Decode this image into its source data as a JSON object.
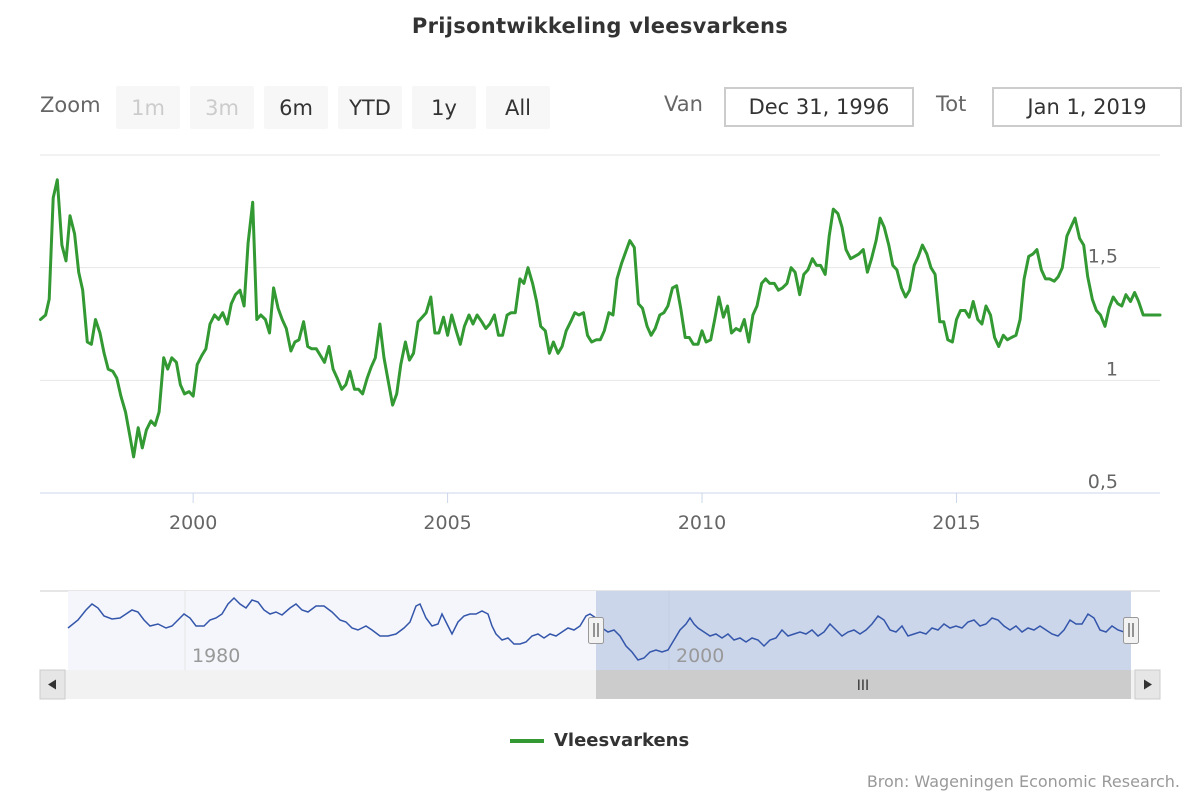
{
  "chart_data": {
    "type": "line",
    "title": "Prijsontwikkeling vleesvarkens",
    "xlabel": "",
    "ylabel": "",
    "xlim": [
      1996.99,
      2019.0
    ],
    "ylim": [
      0.5,
      2.0
    ],
    "y_ticks": [
      0.5,
      1,
      1.5
    ],
    "y_tick_labels": [
      "0,5",
      "1",
      "1,5"
    ],
    "x_ticks": [
      2000,
      2005,
      2010,
      2015
    ],
    "x_tick_labels": [
      "2000",
      "2005",
      "2010",
      "2015"
    ],
    "grid": true,
    "series": [
      {
        "name": "Vleesvarkens",
        "color": "#339933",
        "points": [
          [
            1997.0,
            1.27
          ],
          [
            1997.1,
            1.29
          ],
          [
            1997.17,
            1.36
          ],
          [
            1997.25,
            1.81
          ],
          [
            1997.33,
            1.89
          ],
          [
            1997.42,
            1.6
          ],
          [
            1997.5,
            1.53
          ],
          [
            1997.58,
            1.73
          ],
          [
            1997.67,
            1.65
          ],
          [
            1997.75,
            1.48
          ],
          [
            1997.83,
            1.4
          ],
          [
            1997.92,
            1.17
          ],
          [
            1998.0,
            1.16
          ],
          [
            1998.08,
            1.27
          ],
          [
            1998.17,
            1.21
          ],
          [
            1998.25,
            1.12
          ],
          [
            1998.33,
            1.05
          ],
          [
            1998.42,
            1.04
          ],
          [
            1998.5,
            1.01
          ],
          [
            1998.58,
            0.93
          ],
          [
            1998.67,
            0.86
          ],
          [
            1998.75,
            0.76
          ],
          [
            1998.83,
            0.66
          ],
          [
            1998.92,
            0.79
          ],
          [
            1999.0,
            0.7
          ],
          [
            1999.08,
            0.78
          ],
          [
            1999.17,
            0.82
          ],
          [
            1999.25,
            0.8
          ],
          [
            1999.33,
            0.86
          ],
          [
            1999.42,
            1.1
          ],
          [
            1999.5,
            1.05
          ],
          [
            1999.58,
            1.1
          ],
          [
            1999.67,
            1.08
          ],
          [
            1999.75,
            0.98
          ],
          [
            1999.83,
            0.94
          ],
          [
            1999.92,
            0.95
          ],
          [
            2000.0,
            0.93
          ],
          [
            2000.08,
            1.07
          ],
          [
            2000.17,
            1.11
          ],
          [
            2000.25,
            1.14
          ],
          [
            2000.33,
            1.25
          ],
          [
            2000.42,
            1.29
          ],
          [
            2000.5,
            1.27
          ],
          [
            2000.58,
            1.3
          ],
          [
            2000.67,
            1.25
          ],
          [
            2000.75,
            1.34
          ],
          [
            2000.83,
            1.38
          ],
          [
            2000.92,
            1.4
          ],
          [
            2001.0,
            1.33
          ],
          [
            2001.08,
            1.61
          ],
          [
            2001.17,
            1.79
          ],
          [
            2001.25,
            1.27
          ],
          [
            2001.33,
            1.29
          ],
          [
            2001.42,
            1.27
          ],
          [
            2001.5,
            1.21
          ],
          [
            2001.58,
            1.41
          ],
          [
            2001.67,
            1.32
          ],
          [
            2001.75,
            1.27
          ],
          [
            2001.83,
            1.23
          ],
          [
            2001.92,
            1.13
          ],
          [
            2002.0,
            1.17
          ],
          [
            2002.08,
            1.18
          ],
          [
            2002.17,
            1.26
          ],
          [
            2002.25,
            1.15
          ],
          [
            2002.33,
            1.14
          ],
          [
            2002.42,
            1.14
          ],
          [
            2002.5,
            1.11
          ],
          [
            2002.58,
            1.08
          ],
          [
            2002.67,
            1.15
          ],
          [
            2002.75,
            1.05
          ],
          [
            2002.83,
            1.01
          ],
          [
            2002.92,
            0.96
          ],
          [
            2003.0,
            0.98
          ],
          [
            2003.08,
            1.04
          ],
          [
            2003.17,
            0.96
          ],
          [
            2003.25,
            0.96
          ],
          [
            2003.33,
            0.94
          ],
          [
            2003.42,
            1.01
          ],
          [
            2003.5,
            1.06
          ],
          [
            2003.58,
            1.1
          ],
          [
            2003.67,
            1.25
          ],
          [
            2003.75,
            1.1
          ],
          [
            2003.83,
            1.0
          ],
          [
            2003.92,
            0.89
          ],
          [
            2004.0,
            0.94
          ],
          [
            2004.08,
            1.07
          ],
          [
            2004.17,
            1.17
          ],
          [
            2004.25,
            1.09
          ],
          [
            2004.33,
            1.12
          ],
          [
            2004.42,
            1.26
          ],
          [
            2004.5,
            1.28
          ],
          [
            2004.58,
            1.3
          ],
          [
            2004.67,
            1.37
          ],
          [
            2004.75,
            1.21
          ],
          [
            2004.83,
            1.21
          ],
          [
            2004.92,
            1.28
          ],
          [
            2005.0,
            1.2
          ],
          [
            2005.08,
            1.29
          ],
          [
            2005.17,
            1.22
          ],
          [
            2005.25,
            1.16
          ],
          [
            2005.33,
            1.24
          ],
          [
            2005.42,
            1.29
          ],
          [
            2005.5,
            1.25
          ],
          [
            2005.58,
            1.29
          ],
          [
            2005.67,
            1.26
          ],
          [
            2005.75,
            1.23
          ],
          [
            2005.83,
            1.25
          ],
          [
            2005.92,
            1.29
          ],
          [
            2006.0,
            1.2
          ],
          [
            2006.08,
            1.2
          ],
          [
            2006.17,
            1.29
          ],
          [
            2006.25,
            1.3
          ],
          [
            2006.33,
            1.3
          ],
          [
            2006.42,
            1.45
          ],
          [
            2006.5,
            1.43
          ],
          [
            2006.58,
            1.5
          ],
          [
            2006.67,
            1.43
          ],
          [
            2006.75,
            1.35
          ],
          [
            2006.83,
            1.24
          ],
          [
            2006.92,
            1.22
          ],
          [
            2007.0,
            1.12
          ],
          [
            2007.08,
            1.17
          ],
          [
            2007.17,
            1.12
          ],
          [
            2007.25,
            1.15
          ],
          [
            2007.33,
            1.22
          ],
          [
            2007.42,
            1.26
          ],
          [
            2007.5,
            1.3
          ],
          [
            2007.58,
            1.29
          ],
          [
            2007.67,
            1.3
          ],
          [
            2007.75,
            1.2
          ],
          [
            2007.83,
            1.17
          ],
          [
            2007.92,
            1.18
          ],
          [
            2008.0,
            1.18
          ],
          [
            2008.08,
            1.22
          ],
          [
            2008.17,
            1.3
          ],
          [
            2008.25,
            1.29
          ],
          [
            2008.33,
            1.45
          ],
          [
            2008.42,
            1.52
          ],
          [
            2008.5,
            1.57
          ],
          [
            2008.58,
            1.62
          ],
          [
            2008.67,
            1.59
          ],
          [
            2008.75,
            1.34
          ],
          [
            2008.83,
            1.32
          ],
          [
            2008.92,
            1.24
          ],
          [
            2009.0,
            1.2
          ],
          [
            2009.08,
            1.23
          ],
          [
            2009.17,
            1.29
          ],
          [
            2009.25,
            1.3
          ],
          [
            2009.33,
            1.33
          ],
          [
            2009.42,
            1.41
          ],
          [
            2009.5,
            1.42
          ],
          [
            2009.58,
            1.32
          ],
          [
            2009.67,
            1.19
          ],
          [
            2009.75,
            1.19
          ],
          [
            2009.83,
            1.16
          ],
          [
            2009.92,
            1.16
          ],
          [
            2010.0,
            1.22
          ],
          [
            2010.08,
            1.17
          ],
          [
            2010.17,
            1.18
          ],
          [
            2010.25,
            1.27
          ],
          [
            2010.33,
            1.37
          ],
          [
            2010.42,
            1.28
          ],
          [
            2010.5,
            1.33
          ],
          [
            2010.58,
            1.21
          ],
          [
            2010.67,
            1.23
          ],
          [
            2010.75,
            1.22
          ],
          [
            2010.83,
            1.27
          ],
          [
            2010.92,
            1.17
          ],
          [
            2011.0,
            1.29
          ],
          [
            2011.08,
            1.33
          ],
          [
            2011.17,
            1.43
          ],
          [
            2011.25,
            1.45
          ],
          [
            2011.33,
            1.43
          ],
          [
            2011.42,
            1.43
          ],
          [
            2011.5,
            1.4
          ],
          [
            2011.58,
            1.41
          ],
          [
            2011.67,
            1.43
          ],
          [
            2011.75,
            1.5
          ],
          [
            2011.83,
            1.48
          ],
          [
            2011.92,
            1.38
          ],
          [
            2012.0,
            1.47
          ],
          [
            2012.08,
            1.49
          ],
          [
            2012.17,
            1.54
          ],
          [
            2012.25,
            1.51
          ],
          [
            2012.33,
            1.51
          ],
          [
            2012.42,
            1.47
          ],
          [
            2012.5,
            1.64
          ],
          [
            2012.58,
            1.76
          ],
          [
            2012.67,
            1.74
          ],
          [
            2012.75,
            1.68
          ],
          [
            2012.83,
            1.58
          ],
          [
            2012.92,
            1.54
          ],
          [
            2013.0,
            1.55
          ],
          [
            2013.08,
            1.56
          ],
          [
            2013.17,
            1.58
          ],
          [
            2013.25,
            1.48
          ],
          [
            2013.33,
            1.54
          ],
          [
            2013.42,
            1.62
          ],
          [
            2013.5,
            1.72
          ],
          [
            2013.58,
            1.68
          ],
          [
            2013.67,
            1.6
          ],
          [
            2013.75,
            1.51
          ],
          [
            2013.83,
            1.49
          ],
          [
            2013.92,
            1.41
          ],
          [
            2014.0,
            1.37
          ],
          [
            2014.08,
            1.4
          ],
          [
            2014.17,
            1.51
          ],
          [
            2014.25,
            1.55
          ],
          [
            2014.33,
            1.6
          ],
          [
            2014.42,
            1.56
          ],
          [
            2014.5,
            1.5
          ],
          [
            2014.58,
            1.47
          ],
          [
            2014.67,
            1.26
          ],
          [
            2014.75,
            1.26
          ],
          [
            2014.83,
            1.18
          ],
          [
            2014.92,
            1.17
          ],
          [
            2015.0,
            1.27
          ],
          [
            2015.08,
            1.31
          ],
          [
            2015.17,
            1.31
          ],
          [
            2015.25,
            1.28
          ],
          [
            2015.33,
            1.35
          ],
          [
            2015.42,
            1.27
          ],
          [
            2015.5,
            1.25
          ],
          [
            2015.58,
            1.33
          ],
          [
            2015.67,
            1.29
          ],
          [
            2015.75,
            1.19
          ],
          [
            2015.83,
            1.15
          ],
          [
            2015.92,
            1.2
          ],
          [
            2016.0,
            1.18
          ],
          [
            2016.08,
            1.19
          ],
          [
            2016.17,
            1.2
          ],
          [
            2016.25,
            1.27
          ],
          [
            2016.33,
            1.45
          ],
          [
            2016.42,
            1.55
          ],
          [
            2016.5,
            1.56
          ],
          [
            2016.58,
            1.58
          ],
          [
            2016.67,
            1.49
          ],
          [
            2016.75,
            1.45
          ],
          [
            2016.83,
            1.45
          ],
          [
            2016.92,
            1.44
          ],
          [
            2017.0,
            1.46
          ],
          [
            2017.08,
            1.5
          ],
          [
            2017.17,
            1.64
          ],
          [
            2017.25,
            1.68
          ],
          [
            2017.33,
            1.72
          ],
          [
            2017.42,
            1.63
          ],
          [
            2017.5,
            1.6
          ],
          [
            2017.58,
            1.46
          ],
          [
            2017.67,
            1.36
          ],
          [
            2017.75,
            1.31
          ],
          [
            2017.83,
            1.29
          ],
          [
            2017.92,
            1.24
          ],
          [
            2018.0,
            1.32
          ],
          [
            2018.08,
            1.37
          ],
          [
            2018.17,
            1.34
          ],
          [
            2018.25,
            1.33
          ],
          [
            2018.33,
            1.38
          ],
          [
            2018.42,
            1.35
          ],
          [
            2018.5,
            1.39
          ],
          [
            2018.58,
            1.35
          ],
          [
            2018.67,
            1.29
          ],
          [
            2018.75,
            1.29
          ],
          [
            2018.83,
            1.29
          ],
          [
            2019.0,
            1.29
          ]
        ]
      }
    ]
  },
  "zoom": {
    "label": "Zoom",
    "buttons": [
      {
        "label": "1m",
        "disabled": true
      },
      {
        "label": "3m",
        "disabled": true
      },
      {
        "label": "6m",
        "disabled": false
      },
      {
        "label": "YTD",
        "disabled": false
      },
      {
        "label": "1y",
        "disabled": false
      },
      {
        "label": "All",
        "disabled": false
      }
    ]
  },
  "range": {
    "from_label": "Van",
    "from_value": "Dec 31, 1996",
    "to_label": "Tot",
    "to_value": "Jan 1, 2019"
  },
  "navigator": {
    "x_tick_labels": [
      "1980",
      "2000"
    ],
    "selected_start_year": 1996.99,
    "selected_end_year": 2019.0,
    "scrollbar_grip": "III",
    "left_arrow_icon": "triangle-left",
    "right_arrow_icon": "triangle-right",
    "handle_grip": "||"
  },
  "legend": {
    "label": "Vleesvarkens"
  },
  "credits": "Bron: Wageningen Economic Research."
}
